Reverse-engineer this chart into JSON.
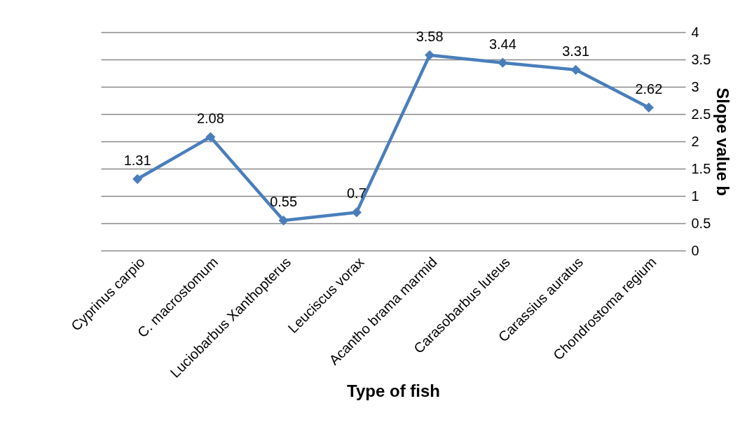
{
  "chart_data": {
    "type": "line",
    "xlabel": "Type of fish",
    "y2label": "Slope value b",
    "categories": [
      "Cyprinus carpio",
      "C. macrostomum",
      "Luciobarbus Xanthopterus",
      "Leuciscus vorax",
      "Acantho brama marmid",
      "Carasobarbus luteus",
      "Carassius auratus",
      "Chondrostoma regium"
    ],
    "series": [
      {
        "color": "#4a7ebb",
        "axis": "y2",
        "values": [
          1.31,
          2.08,
          0.55,
          0.7,
          3.58,
          3.44,
          3.31,
          2.62
        ]
      }
    ],
    "y2lim": [
      0,
      4
    ],
    "y2ticks": [
      0,
      0.5,
      1,
      1.5,
      2,
      2.5,
      3,
      3.5,
      4
    ],
    "grid": "y",
    "marker": "diamond",
    "line_style": "solid",
    "data_labels": true
  }
}
